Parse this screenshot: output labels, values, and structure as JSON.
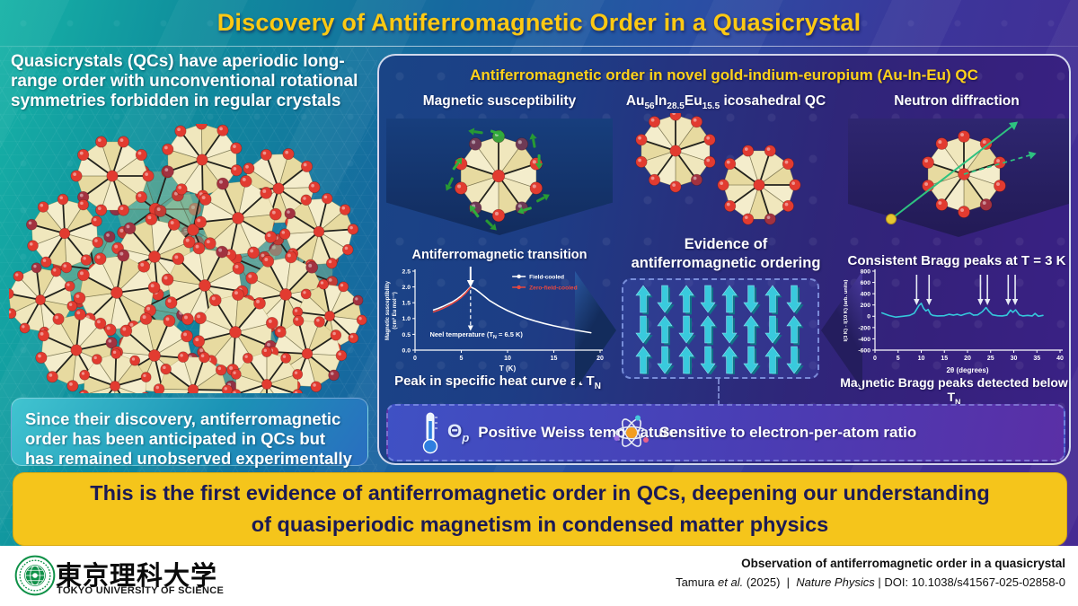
{
  "title": "Discovery of Antiferromagnetic Order in a Quasicrystal",
  "left": {
    "intro": "Quasicrystals (QCs) have aperiodic long-range order with unconventional rotational symmetries forbidden in regular crystals",
    "box": "Since their discovery, antiferromagnetic order has been anticipated in QCs but has remained unobserved experimentally"
  },
  "panel": {
    "header": "Antiferromagnetic order in novel gold-indium-europium (Au-In-Eu) QC",
    "col1": {
      "title": "Magnetic susceptibility",
      "transition_label": "Antiferromagnetic transition",
      "caption_pre": "Peak in specific heat curve at T",
      "caption_sub": "N"
    },
    "col2": {
      "f_pre": "Au",
      "f_sub1": "56",
      "f_mid1": "In",
      "f_sub2": "28.5",
      "f_mid2": "Eu",
      "f_sub3": "15.5",
      "f_post": " icosahedral QC",
      "evidence_line1": "Evidence of",
      "evidence_line2": "antiferromagnetic ordering",
      "arrow_rows": 3,
      "arrow_cols": 8
    },
    "col3": {
      "title": "Neutron diffraction",
      "bragg_label": "Consistent Bragg peaks at T = 3 K",
      "caption_pre": "Magnetic Bragg peaks detected below T",
      "caption_sub": "N"
    },
    "bottom": [
      {
        "icon": "thermometer-icon",
        "symbol": "Θ",
        "symbol_sub": "p",
        "label": "Positive Weiss temperature"
      },
      {
        "icon": "atom-icon",
        "label": "Sensitive to electron-per-atom ratio"
      }
    ]
  },
  "banner": "This is the first evidence of antiferromagnetic order in QCs, deepening our understanding of quasiperiodic magnetism in condensed matter physics",
  "footer": {
    "logo_kanji": "東京理科大学",
    "logo_en": "TOKYO UNIVERSITY OF SCIENCE",
    "logo_ring": "TOKYO UNIVERSITY OF SCIENCE since 1881",
    "paper_title": "Observation of antiferromagnetic order in a quasicrystal",
    "citation": {
      "authors_pre": "Tamura ",
      "authors_etal": "et al.",
      "authors_post": " (2025)",
      "sep1": "|",
      "journal": "Nature Physics",
      "sep2": "|",
      "doi": "DOI: 10.1038/s41567-025-02858-0"
    }
  },
  "colors": {
    "accent_yellow": "#ffd21a",
    "teal_arrow": "#39cadd",
    "curve_cyan": "#35c8dc",
    "field_cooled": "#ffffff",
    "zero_field_cooled": "#e8483f",
    "green_arrow": "#2fae3c"
  },
  "chart_data": [
    {
      "type": "line",
      "title": "Antiferromagnetic transition",
      "xlabel": "T (K)",
      "ylabel": "Magnetic susceptibility",
      "ylabel2": "(cm³ Eu mol⁻¹)",
      "xlim": [
        0,
        20
      ],
      "ylim": [
        0,
        2.5
      ],
      "xticks": [
        0,
        5,
        10,
        15,
        20
      ],
      "yticks": [
        0,
        0.5,
        1,
        1.5,
        2,
        2.5
      ],
      "grid": false,
      "legend_position": "upper right",
      "series": [
        {
          "name": "Field-cooled",
          "color": "#ffffff",
          "x": [
            2,
            2.5,
            3,
            3.5,
            4,
            4.5,
            5,
            5.5,
            6,
            6.5,
            7,
            7.5,
            8,
            9,
            10,
            11,
            12,
            13,
            14,
            15,
            16,
            17,
            18,
            19
          ],
          "y": [
            1.27,
            1.32,
            1.38,
            1.45,
            1.52,
            1.61,
            1.72,
            1.85,
            2.0,
            1.93,
            1.82,
            1.7,
            1.58,
            1.4,
            1.25,
            1.12,
            1.01,
            0.92,
            0.84,
            0.77,
            0.71,
            0.65,
            0.6,
            0.55
          ]
        },
        {
          "name": "Zero-field-cooled",
          "color": "#e8483f",
          "x": [
            2,
            2.5,
            3,
            3.5,
            4,
            4.5,
            5,
            5.5,
            6
          ],
          "y": [
            1.21,
            1.26,
            1.32,
            1.39,
            1.47,
            1.56,
            1.67,
            1.81,
            1.99
          ]
        }
      ],
      "annotation": {
        "pre": "Neel temperature (T",
        "sub": "N",
        "post": " = 6.5 K)",
        "x": 6
      }
    },
    {
      "type": "line",
      "title": "Consistent Bragg peaks at T = 3 K",
      "xlabel": "2θ (degrees)",
      "ylabel": "I(3 K) - I(10 K) (arb. units)",
      "xlim": [
        0,
        40
      ],
      "ylim": [
        -600,
        800
      ],
      "xticks": [
        0,
        5,
        10,
        15,
        20,
        25,
        30,
        35,
        40
      ],
      "yticks": [
        -600,
        -400,
        -200,
        0,
        200,
        400,
        600,
        800
      ],
      "grid": false,
      "series": [
        {
          "name": "I(3 K) - I(10 K)",
          "color": "#35c8dc",
          "x": [
            1.5,
            3,
            4.5,
            6,
            7.5,
            8.5,
            9.5,
            10,
            10.5,
            11,
            11.5,
            12,
            12.5,
            13.5,
            15,
            16,
            17,
            17.8,
            18.6,
            19.5,
            20.5,
            21.3,
            22.2,
            23.2,
            24,
            24.6,
            25.4,
            26.5,
            27.5,
            28.5,
            29.3,
            29.8,
            30.4,
            31.2,
            32,
            33,
            34,
            34.6,
            35.3,
            36.3
          ],
          "y": [
            60,
            15,
            -15,
            0,
            15,
            55,
            190,
            230,
            140,
            95,
            120,
            40,
            15,
            5,
            10,
            35,
            20,
            35,
            15,
            40,
            60,
            20,
            25,
            80,
            155,
            90,
            25,
            10,
            5,
            20,
            110,
            70,
            115,
            25,
            5,
            15,
            5,
            50,
            0,
            15
          ]
        }
      ],
      "arrow_annotations_x": [
        9,
        11.7,
        22.8,
        24.3,
        28.8,
        30.3
      ]
    }
  ]
}
